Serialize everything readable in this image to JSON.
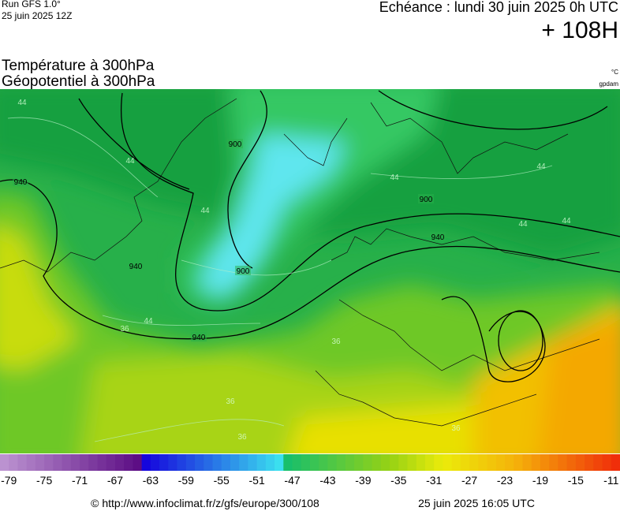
{
  "header": {
    "run": "Run GFS 1.0°",
    "run_date": "25 juin 2025 12Z",
    "valid": "Echéance : lundi 30 juin 2025 0h UTC",
    "lead": "+ 108H",
    "title_temp": "Température à 300hPa",
    "title_geo": "Géopotentiel à 300hPa",
    "unit_temp": "°C",
    "unit_geo": "gpdam"
  },
  "map": {
    "contour_labels": [
      "940",
      "900",
      "900",
      "940",
      "940",
      "900",
      "940"
    ],
    "isotherm_labels": [
      "44",
      "44",
      "44",
      "44",
      "44",
      "44",
      "44",
      "44",
      "36",
      "36",
      "36",
      "36",
      "36"
    ]
  },
  "colorbar": {
    "ticks": [
      -79,
      -75,
      -71,
      -67,
      -63,
      -59,
      -55,
      -51,
      -47,
      -43,
      -39,
      -35,
      -31,
      -27,
      -23,
      -19,
      -15,
      -11
    ]
  },
  "footer": {
    "url": "© http://www.infoclimat.fr/z/gfs/europe/300/108",
    "timestamp": "25 juin 2025 16:05 UTC"
  }
}
